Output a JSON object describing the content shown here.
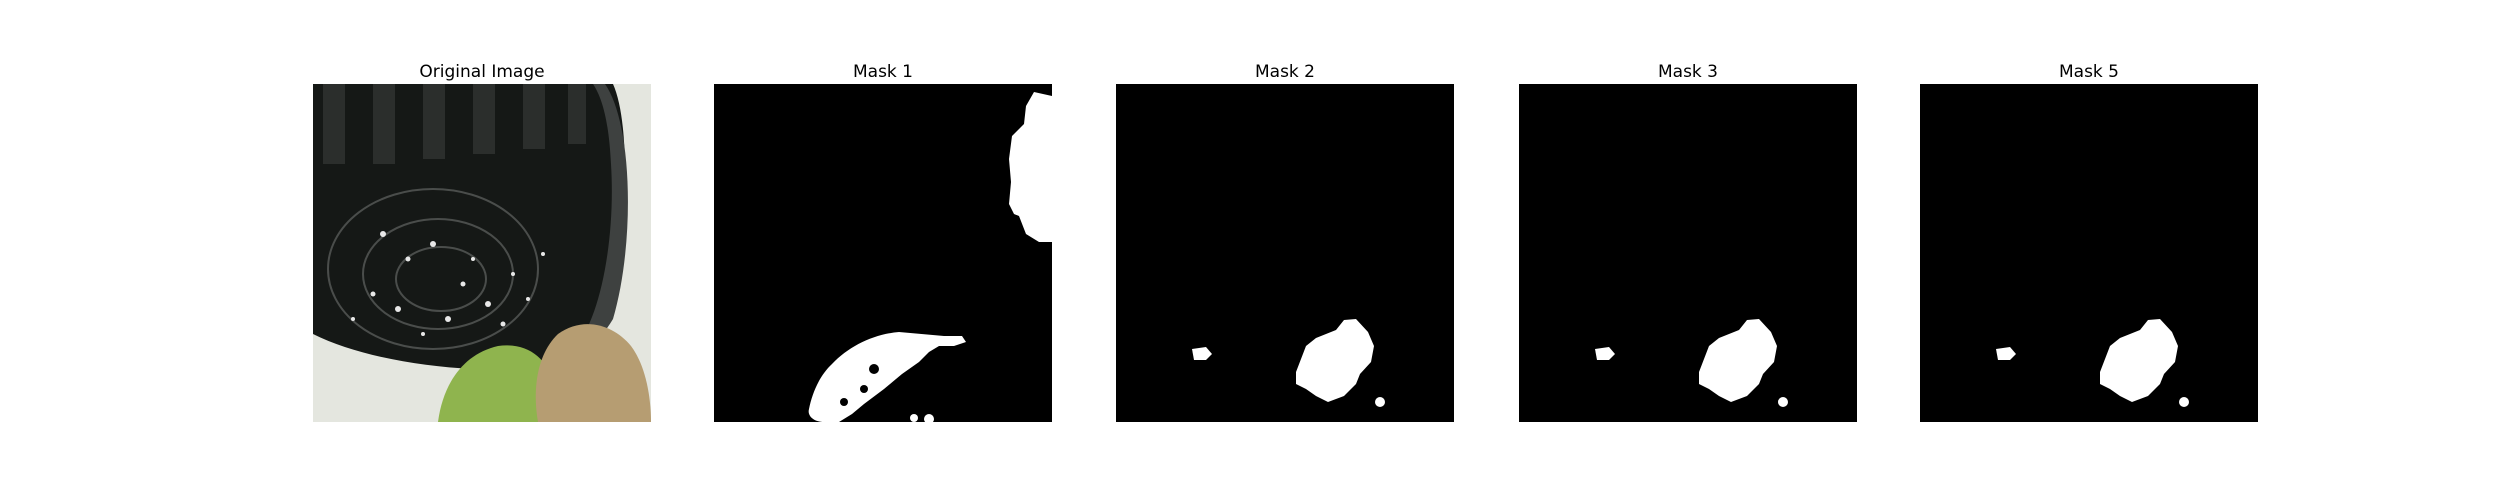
{
  "panels": [
    {
      "title": "Original Image"
    },
    {
      "title": "Mask 1"
    },
    {
      "title": "Mask 2"
    },
    {
      "title": "Mask 3"
    },
    {
      "title": "Mask 5"
    }
  ],
  "colors": {
    "background": "#ffffff",
    "mask_background": "#000000",
    "mask_foreground": "#ffffff",
    "photo_pot_dark": "#151816",
    "photo_pot_rim": "#3e4140",
    "photo_white_plastic": "#e4e6df",
    "photo_green_leaf": "#8fb44e",
    "photo_dry_leaf": "#b69d72"
  }
}
